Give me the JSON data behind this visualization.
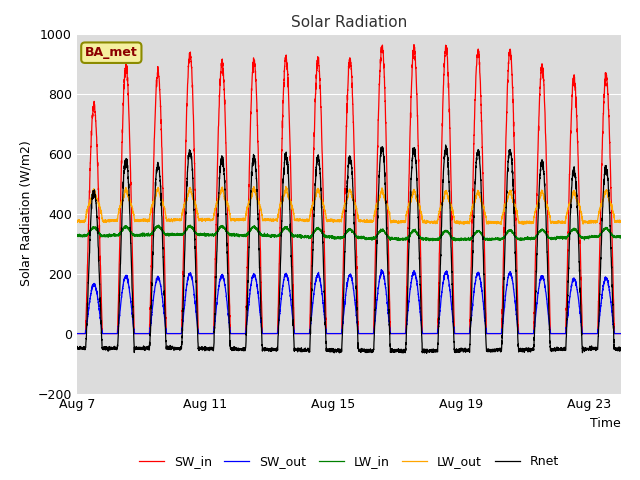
{
  "title": "Solar Radiation",
  "xlabel": "Time",
  "ylabel": "Solar Radiation (W/m2)",
  "ylim": [
    -200,
    1000
  ],
  "yticks": [
    -200,
    0,
    200,
    400,
    600,
    800,
    1000
  ],
  "xtick_positions": [
    0,
    4,
    8,
    12,
    16
  ],
  "xtick_labels": [
    "Aug 7",
    "Aug 11",
    "Aug 15",
    "Aug 19",
    "Aug 23"
  ],
  "legend_labels": [
    "SW_in",
    "SW_out",
    "LW_in",
    "LW_out",
    "Rnet"
  ],
  "line_colors": [
    "red",
    "blue",
    "green",
    "orange",
    "black"
  ],
  "plot_bg_color": "#dcdcdc",
  "station_label": "BA_met",
  "n_days": 17,
  "points_per_day": 288,
  "peak_SW": [
    760,
    890,
    870,
    930,
    900,
    910,
    920,
    910,
    910,
    960,
    950,
    950,
    940,
    940,
    890,
    850,
    860
  ]
}
